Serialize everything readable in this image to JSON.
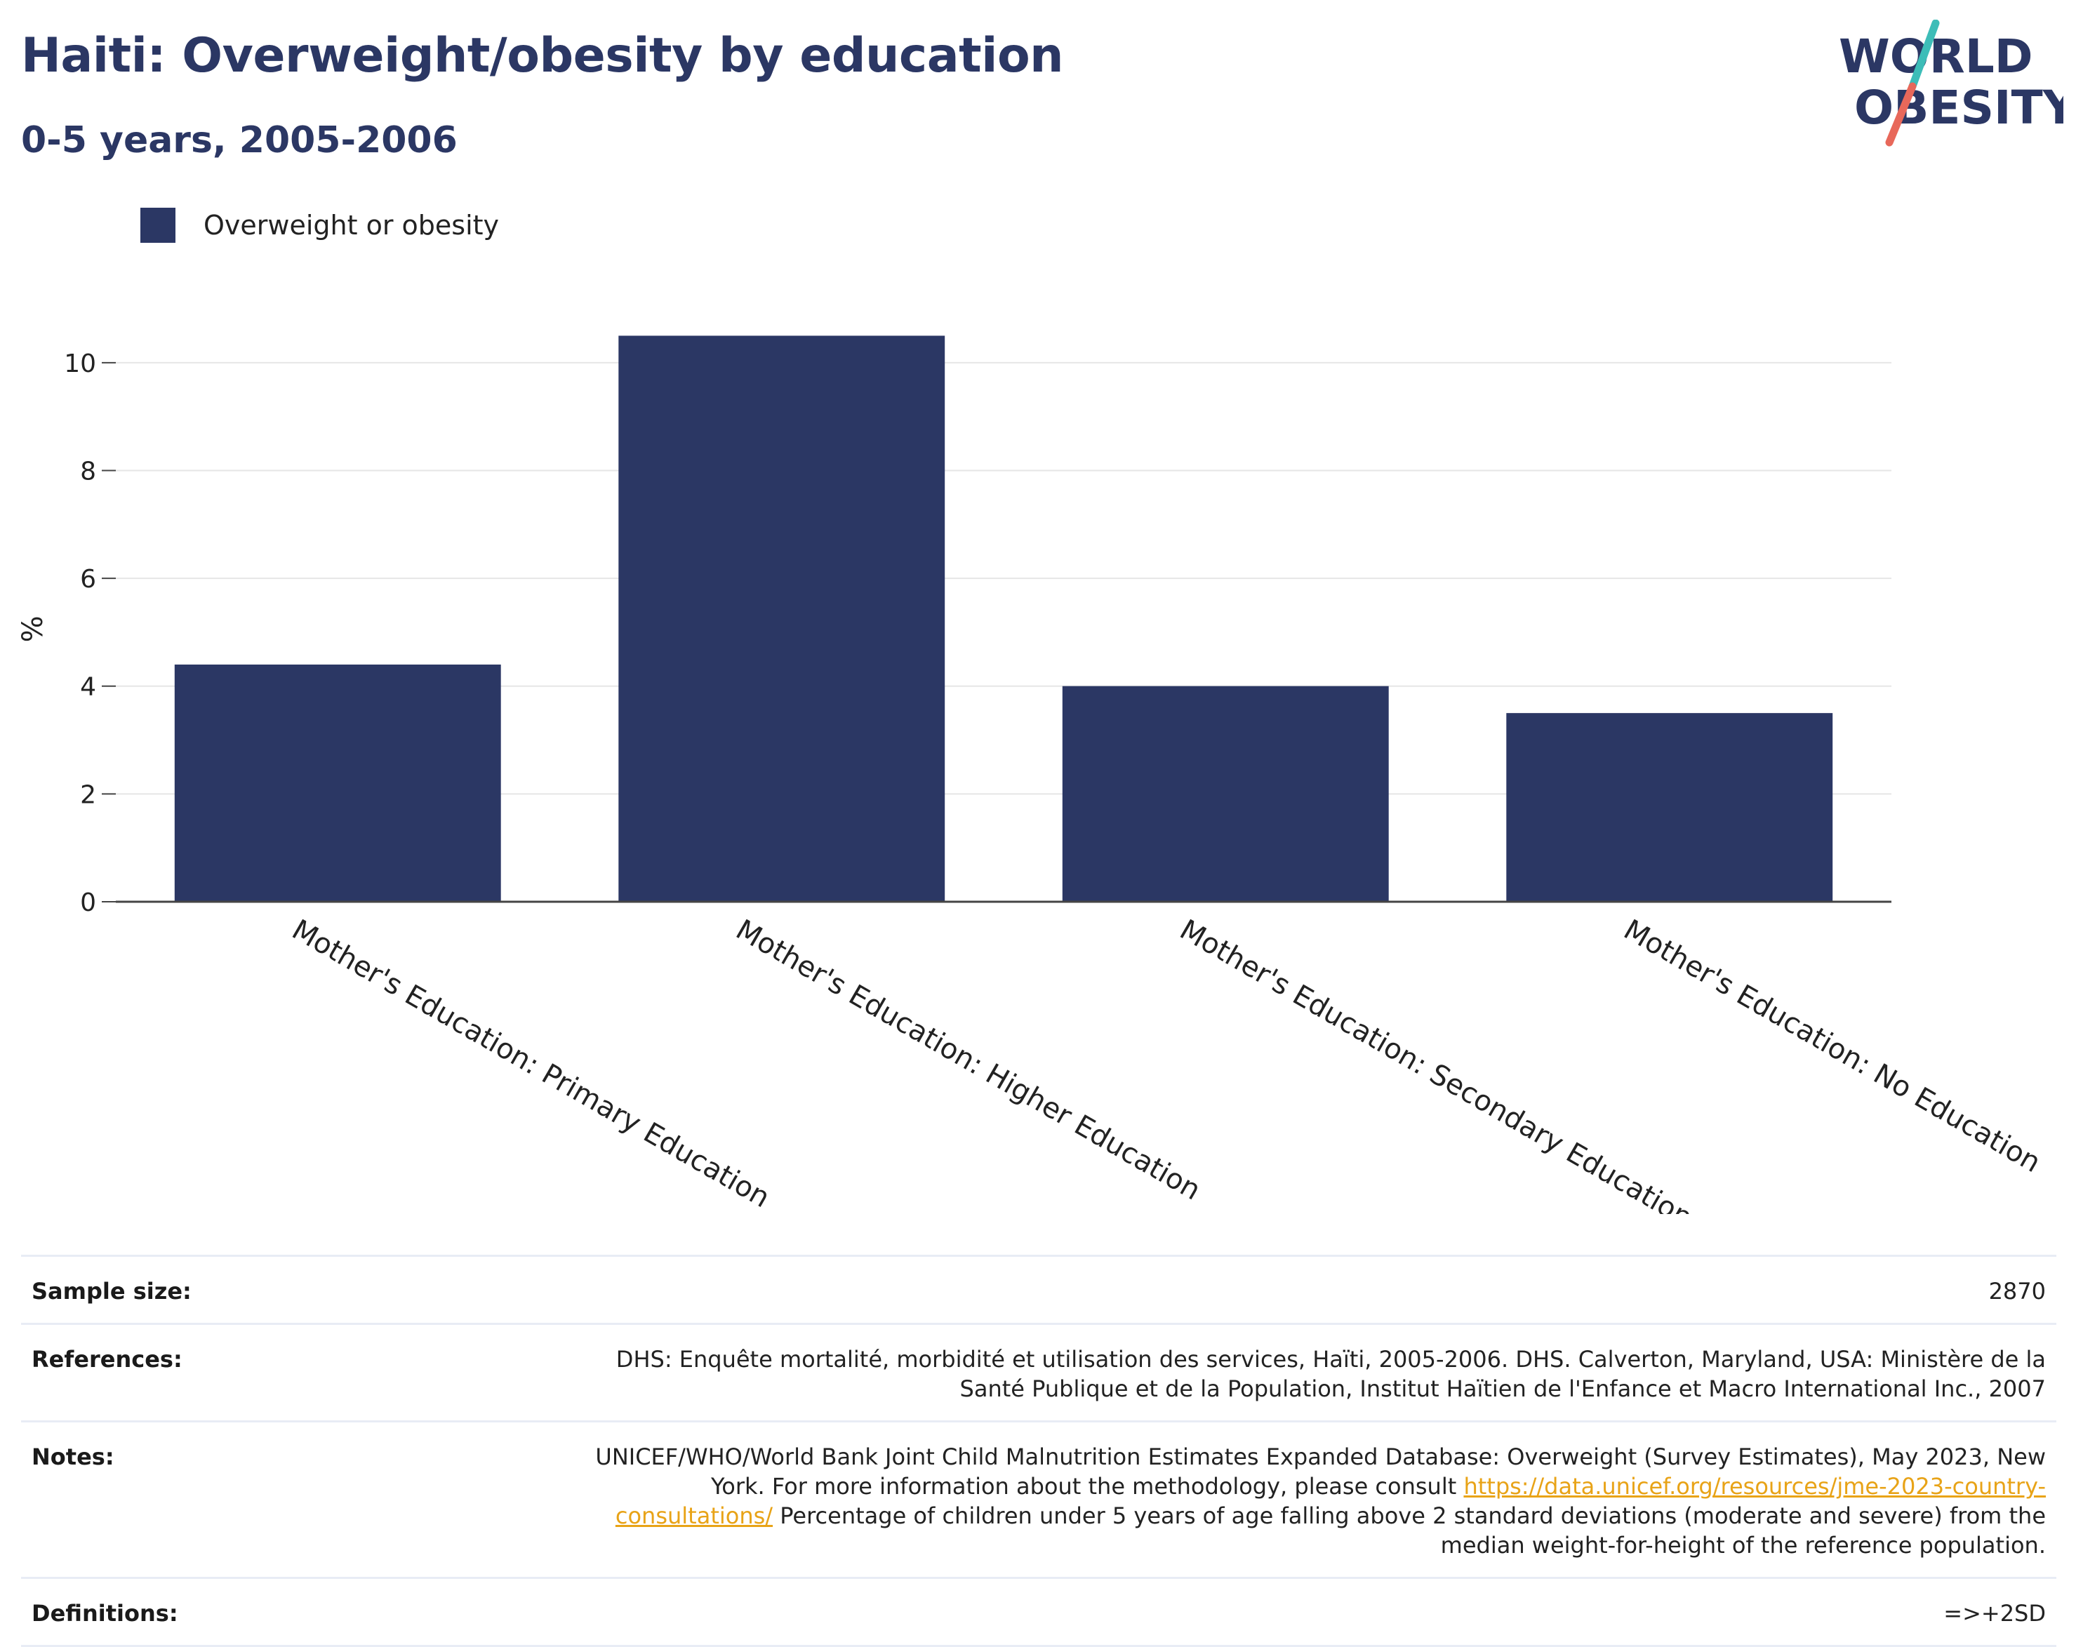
{
  "header": {
    "title": "Haiti: Overweight/obesity by education",
    "subtitle": "0-5 years, 2005-2006"
  },
  "logo": {
    "line1": "WORLD",
    "line2": "OBESITY"
  },
  "legend": {
    "label": "Overweight or obesity",
    "color": "#2b3764"
  },
  "chart_data": {
    "type": "bar",
    "categories": [
      "Mother's Education: Primary Education",
      "Mother's Education: Higher Education",
      "Mother's Education: Secondary Education",
      "Mother's Education: No Education"
    ],
    "series": [
      {
        "name": "Overweight or obesity",
        "values": [
          4.4,
          10.5,
          4.0,
          3.5
        ]
      }
    ],
    "ylabel": "%",
    "xlabel": "",
    "ylim": [
      0,
      11
    ],
    "yticks": [
      0,
      2,
      4,
      6,
      8,
      10
    ],
    "grid": true,
    "legend_position": "top-left",
    "bar_color": "#2b3764"
  },
  "info": {
    "sample_size_label": "Sample size:",
    "sample_size_value": "2870",
    "references_label": "References:",
    "references_value": "DHS: Enquête mortalité, morbidité et utilisation des services, Haïti, 2005-2006. DHS. Calverton, Maryland, USA: Ministère de la Santé Publique et de la Population, Institut Haïtien de l'Enfance et Macro International Inc., 2007",
    "notes_label": "Notes:",
    "notes_before_link": "UNICEF/WHO/World Bank Joint Child Malnutrition Estimates Expanded Database: Overweight (Survey Estimates), May 2023, New York. For more information about the methodology, please consult ",
    "notes_link": "https://data.unicef.org/resources/jme-2023-country-consultations/",
    "notes_after_link": " Percentage of children under 5 years of age falling above 2 standard deviations (moderate and severe) from the median weight-for-height of the reference population.",
    "definitions_label": "Definitions:",
    "definitions_value": "=>+2SD"
  }
}
